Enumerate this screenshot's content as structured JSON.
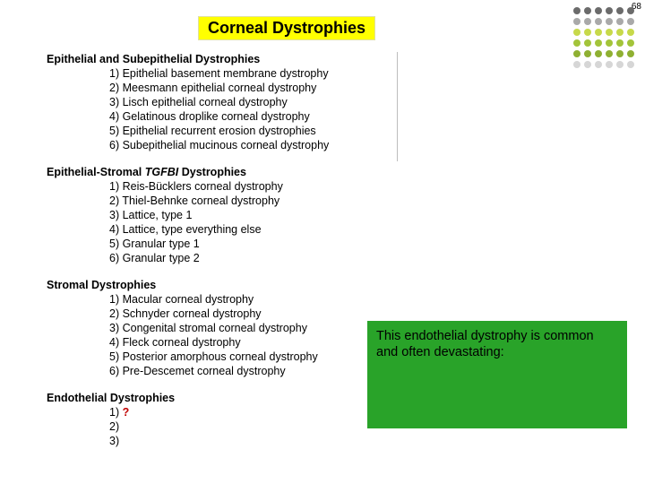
{
  "page_number": "68",
  "title": "Corneal Dystrophies",
  "dot_grid": {
    "colors": [
      "#6b6b6b",
      "#6b6b6b",
      "#6b6b6b",
      "#6b6b6b",
      "#6b6b6b",
      "#6b6b6b",
      "#a9a9a9",
      "#a9a9a9",
      "#a9a9a9",
      "#a9a9a9",
      "#a9a9a9",
      "#a9a9a9",
      "#c7d94a",
      "#c7d94a",
      "#c7d94a",
      "#c7d94a",
      "#c7d94a",
      "#c7d94a",
      "#a3c43a",
      "#a3c43a",
      "#a3c43a",
      "#a3c43a",
      "#a3c43a",
      "#a3c43a",
      "#8fb032",
      "#8fb032",
      "#8fb032",
      "#8fb032",
      "#8fb032",
      "#8fb032",
      "#d6d6d6",
      "#d6d6d6",
      "#d6d6d6",
      "#d6d6d6",
      "#d6d6d6",
      "#d6d6d6"
    ]
  },
  "sections": [
    {
      "heading_plain": "Epithelial and Subepithelial Dystrophies",
      "heading_italic": "",
      "heading_suffix": "",
      "items": [
        "1) Epithelial basement membrane dystrophy",
        "2) Meesmann epithelial corneal dystrophy",
        "3) Lisch epithelial corneal dystrophy",
        "4) Gelatinous droplike corneal dystrophy",
        "5) Epithelial recurrent erosion dystrophies",
        "6) Subepithelial mucinous corneal dystrophy"
      ]
    },
    {
      "heading_plain": "Epithelial-Stromal ",
      "heading_italic": "TGFBI",
      "heading_suffix": " Dystrophies",
      "items": [
        "1) Reis-Bücklers corneal dystrophy",
        "2) Thiel-Behnke corneal dystrophy",
        "3) Lattice, type 1",
        "4) Lattice, type everything else",
        "5) Granular type 1",
        "6) Granular type 2"
      ]
    },
    {
      "heading_plain": "Stromal Dystrophies",
      "heading_italic": "",
      "heading_suffix": "",
      "items": [
        "1) Macular corneal dystrophy",
        "2) Schnyder corneal dystrophy",
        "3) Congenital stromal corneal dystrophy",
        "4) Fleck corneal dystrophy",
        "5) Posterior amorphous corneal dystrophy",
        "6) Pre-Descemet corneal dystrophy"
      ]
    },
    {
      "heading_plain": "Endothelial Dystrophies",
      "heading_italic": "",
      "heading_suffix": "",
      "items": [
        "1) ",
        "2)",
        "3)"
      ],
      "first_item_question": "?"
    }
  ],
  "callout": {
    "text": "This endothelial dystrophy is common and often devastating:",
    "background": "#29a329"
  }
}
